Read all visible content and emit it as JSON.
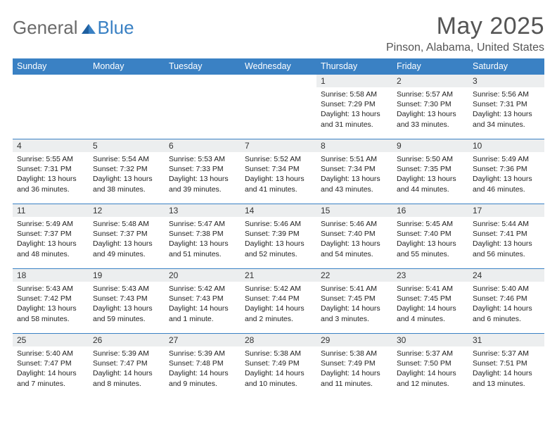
{
  "logo": {
    "text_general": "General",
    "text_blue": "Blue"
  },
  "title": "May 2025",
  "location": "Pinson, Alabama, United States",
  "colors": {
    "header_bg": "#3a81c4",
    "daynum_bg": "#eceeef",
    "row_border": "#3a81c4"
  },
  "day_headers": [
    "Sunday",
    "Monday",
    "Tuesday",
    "Wednesday",
    "Thursday",
    "Friday",
    "Saturday"
  ],
  "weeks": [
    [
      {
        "n": "",
        "sr": "",
        "ss": "",
        "dl": ""
      },
      {
        "n": "",
        "sr": "",
        "ss": "",
        "dl": ""
      },
      {
        "n": "",
        "sr": "",
        "ss": "",
        "dl": ""
      },
      {
        "n": "",
        "sr": "",
        "ss": "",
        "dl": ""
      },
      {
        "n": "1",
        "sr": "Sunrise: 5:58 AM",
        "ss": "Sunset: 7:29 PM",
        "dl": "Daylight: 13 hours and 31 minutes."
      },
      {
        "n": "2",
        "sr": "Sunrise: 5:57 AM",
        "ss": "Sunset: 7:30 PM",
        "dl": "Daylight: 13 hours and 33 minutes."
      },
      {
        "n": "3",
        "sr": "Sunrise: 5:56 AM",
        "ss": "Sunset: 7:31 PM",
        "dl": "Daylight: 13 hours and 34 minutes."
      }
    ],
    [
      {
        "n": "4",
        "sr": "Sunrise: 5:55 AM",
        "ss": "Sunset: 7:31 PM",
        "dl": "Daylight: 13 hours and 36 minutes."
      },
      {
        "n": "5",
        "sr": "Sunrise: 5:54 AM",
        "ss": "Sunset: 7:32 PM",
        "dl": "Daylight: 13 hours and 38 minutes."
      },
      {
        "n": "6",
        "sr": "Sunrise: 5:53 AM",
        "ss": "Sunset: 7:33 PM",
        "dl": "Daylight: 13 hours and 39 minutes."
      },
      {
        "n": "7",
        "sr": "Sunrise: 5:52 AM",
        "ss": "Sunset: 7:34 PM",
        "dl": "Daylight: 13 hours and 41 minutes."
      },
      {
        "n": "8",
        "sr": "Sunrise: 5:51 AM",
        "ss": "Sunset: 7:34 PM",
        "dl": "Daylight: 13 hours and 43 minutes."
      },
      {
        "n": "9",
        "sr": "Sunrise: 5:50 AM",
        "ss": "Sunset: 7:35 PM",
        "dl": "Daylight: 13 hours and 44 minutes."
      },
      {
        "n": "10",
        "sr": "Sunrise: 5:49 AM",
        "ss": "Sunset: 7:36 PM",
        "dl": "Daylight: 13 hours and 46 minutes."
      }
    ],
    [
      {
        "n": "11",
        "sr": "Sunrise: 5:49 AM",
        "ss": "Sunset: 7:37 PM",
        "dl": "Daylight: 13 hours and 48 minutes."
      },
      {
        "n": "12",
        "sr": "Sunrise: 5:48 AM",
        "ss": "Sunset: 7:37 PM",
        "dl": "Daylight: 13 hours and 49 minutes."
      },
      {
        "n": "13",
        "sr": "Sunrise: 5:47 AM",
        "ss": "Sunset: 7:38 PM",
        "dl": "Daylight: 13 hours and 51 minutes."
      },
      {
        "n": "14",
        "sr": "Sunrise: 5:46 AM",
        "ss": "Sunset: 7:39 PM",
        "dl": "Daylight: 13 hours and 52 minutes."
      },
      {
        "n": "15",
        "sr": "Sunrise: 5:46 AM",
        "ss": "Sunset: 7:40 PM",
        "dl": "Daylight: 13 hours and 54 minutes."
      },
      {
        "n": "16",
        "sr": "Sunrise: 5:45 AM",
        "ss": "Sunset: 7:40 PM",
        "dl": "Daylight: 13 hours and 55 minutes."
      },
      {
        "n": "17",
        "sr": "Sunrise: 5:44 AM",
        "ss": "Sunset: 7:41 PM",
        "dl": "Daylight: 13 hours and 56 minutes."
      }
    ],
    [
      {
        "n": "18",
        "sr": "Sunrise: 5:43 AM",
        "ss": "Sunset: 7:42 PM",
        "dl": "Daylight: 13 hours and 58 minutes."
      },
      {
        "n": "19",
        "sr": "Sunrise: 5:43 AM",
        "ss": "Sunset: 7:43 PM",
        "dl": "Daylight: 13 hours and 59 minutes."
      },
      {
        "n": "20",
        "sr": "Sunrise: 5:42 AM",
        "ss": "Sunset: 7:43 PM",
        "dl": "Daylight: 14 hours and 1 minute."
      },
      {
        "n": "21",
        "sr": "Sunrise: 5:42 AM",
        "ss": "Sunset: 7:44 PM",
        "dl": "Daylight: 14 hours and 2 minutes."
      },
      {
        "n": "22",
        "sr": "Sunrise: 5:41 AM",
        "ss": "Sunset: 7:45 PM",
        "dl": "Daylight: 14 hours and 3 minutes."
      },
      {
        "n": "23",
        "sr": "Sunrise: 5:41 AM",
        "ss": "Sunset: 7:45 PM",
        "dl": "Daylight: 14 hours and 4 minutes."
      },
      {
        "n": "24",
        "sr": "Sunrise: 5:40 AM",
        "ss": "Sunset: 7:46 PM",
        "dl": "Daylight: 14 hours and 6 minutes."
      }
    ],
    [
      {
        "n": "25",
        "sr": "Sunrise: 5:40 AM",
        "ss": "Sunset: 7:47 PM",
        "dl": "Daylight: 14 hours and 7 minutes."
      },
      {
        "n": "26",
        "sr": "Sunrise: 5:39 AM",
        "ss": "Sunset: 7:47 PM",
        "dl": "Daylight: 14 hours and 8 minutes."
      },
      {
        "n": "27",
        "sr": "Sunrise: 5:39 AM",
        "ss": "Sunset: 7:48 PM",
        "dl": "Daylight: 14 hours and 9 minutes."
      },
      {
        "n": "28",
        "sr": "Sunrise: 5:38 AM",
        "ss": "Sunset: 7:49 PM",
        "dl": "Daylight: 14 hours and 10 minutes."
      },
      {
        "n": "29",
        "sr": "Sunrise: 5:38 AM",
        "ss": "Sunset: 7:49 PM",
        "dl": "Daylight: 14 hours and 11 minutes."
      },
      {
        "n": "30",
        "sr": "Sunrise: 5:37 AM",
        "ss": "Sunset: 7:50 PM",
        "dl": "Daylight: 14 hours and 12 minutes."
      },
      {
        "n": "31",
        "sr": "Sunrise: 5:37 AM",
        "ss": "Sunset: 7:51 PM",
        "dl": "Daylight: 14 hours and 13 minutes."
      }
    ]
  ]
}
